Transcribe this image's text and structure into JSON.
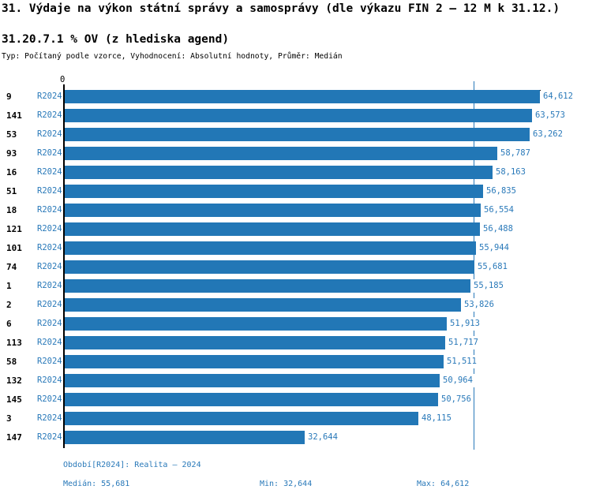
{
  "title": "31. Výdaje na výkon státní správy a samosprávy (dle výkazu FIN 2 – 12 M k 31.12.)",
  "subtitle": "31.20.7.1 % OV (z hlediska agend)",
  "meta_line": "Typ: Počítaný podle vzorce, Vyhodnocení: Absolutní hodnoty, Průměr: Medián",
  "axis": {
    "origin_label": "0"
  },
  "chart_data": {
    "type": "bar",
    "orientation": "horizontal",
    "title": "31.20.7.1 % OV (z hlediska agend)",
    "categories": [
      "9",
      "141",
      "53",
      "93",
      "16",
      "51",
      "18",
      "121",
      "101",
      "74",
      "1",
      "2",
      "6",
      "113",
      "58",
      "132",
      "145",
      "3",
      "147"
    ],
    "series": [
      {
        "name": "R2024",
        "values": [
          64612,
          63573,
          63262,
          58787,
          58163,
          56835,
          56554,
          56488,
          55944,
          55681,
          55185,
          53826,
          51913,
          51717,
          51511,
          50964,
          50756,
          48115,
          32644
        ]
      }
    ],
    "value_labels": [
      "64,612",
      "63,573",
      "63,262",
      "58,787",
      "58,163",
      "56,835",
      "56,554",
      "56,488",
      "55,944",
      "55,681",
      "55,185",
      "53,826",
      "51,913",
      "51,717",
      "51,511",
      "50,964",
      "50,756",
      "48,115",
      "32,644"
    ],
    "xlim": [
      0,
      64612
    ],
    "median": 55681,
    "min": 32644,
    "max": 64612,
    "grid": false,
    "legend_position": "none",
    "bar_color": "#2277b6",
    "median_line_color": "#2979b9"
  },
  "footer": {
    "period_line": "Období[R2024]: Realita – 2024",
    "median_label": "Medián: 55,681",
    "min_label": "Min: 32,644",
    "max_label": "Max: 64,612"
  },
  "colors": {
    "bar": "#2277b6",
    "blue_text": "#2979b9",
    "axis": "#000000",
    "background": "#ffffff"
  }
}
